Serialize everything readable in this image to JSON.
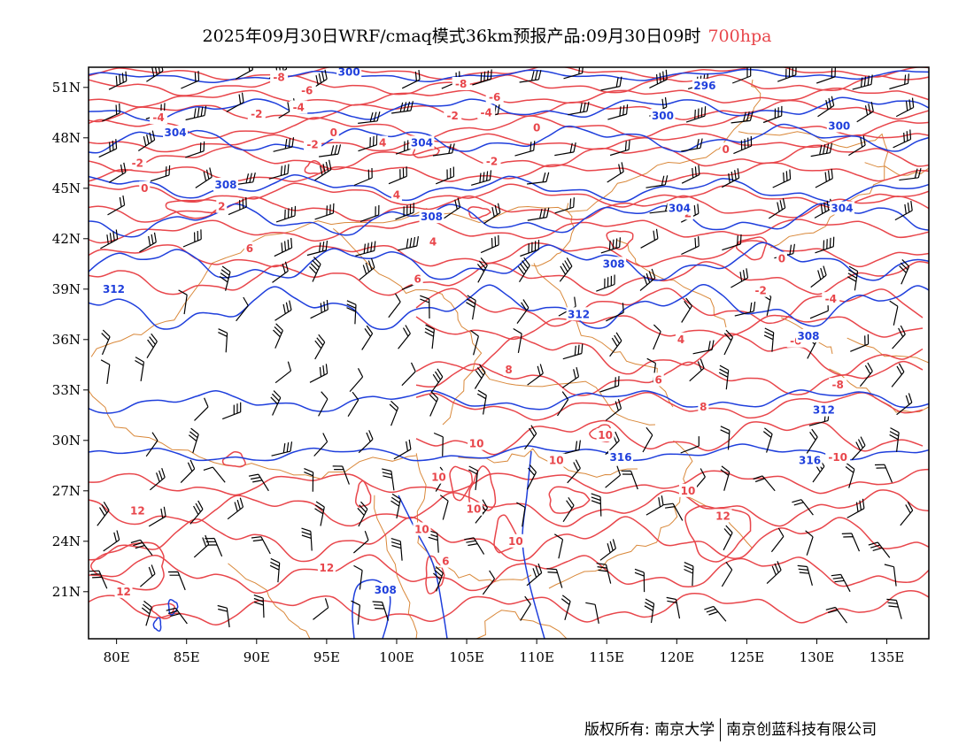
{
  "title": {
    "main": "2025年09月30日WRF/cmaq模式36km预报产品:09月30日09时",
    "level": "700hpa"
  },
  "colors": {
    "temperature": "#e8464b",
    "height": "#1f3fdc",
    "border": "#d9883a",
    "wind": "#000000",
    "level": "#e8464b"
  },
  "axes": {
    "x_labels": [
      "80E",
      "85E",
      "90E",
      "95E",
      "100E",
      "105E",
      "110E",
      "115E",
      "120E",
      "125E",
      "130E",
      "135E"
    ],
    "y_labels": [
      "51N",
      "48N",
      "45N",
      "42N",
      "39N",
      "36N",
      "33N",
      "30N",
      "27N",
      "24N",
      "21N"
    ]
  },
  "chart_data": {
    "type": "contour",
    "level": "700hpa",
    "lon_range": [
      78,
      138
    ],
    "lat_range": [
      18.2,
      52.2
    ],
    "temperature_labels": [
      {
        "text": "-8",
        "lon": 91.6,
        "lat": 51.6
      },
      {
        "text": "-6",
        "lon": 93.6,
        "lat": 50.8
      },
      {
        "text": "-4",
        "lon": 93.0,
        "lat": 49.8
      },
      {
        "text": "-2",
        "lon": 90.0,
        "lat": 49.4
      },
      {
        "text": "0",
        "lon": 95.5,
        "lat": 48.3
      },
      {
        "text": "-2",
        "lon": 94.0,
        "lat": 47.6
      },
      {
        "text": "-4",
        "lon": 83.0,
        "lat": 49.2
      },
      {
        "text": "-2",
        "lon": 81.5,
        "lat": 46.5
      },
      {
        "text": "0",
        "lon": 82.0,
        "lat": 45.0
      },
      {
        "text": "2",
        "lon": 87.5,
        "lat": 43.9
      },
      {
        "text": "4",
        "lon": 99.0,
        "lat": 47.7
      },
      {
        "text": "4",
        "lon": 100.0,
        "lat": 44.6
      },
      {
        "text": "-8",
        "lon": 104.6,
        "lat": 51.2
      },
      {
        "text": "-6",
        "lon": 107.0,
        "lat": 50.4
      },
      {
        "text": "-4",
        "lon": 106.4,
        "lat": 49.5
      },
      {
        "text": "-2",
        "lon": 104.0,
        "lat": 49.3
      },
      {
        "text": "0",
        "lon": 110.0,
        "lat": 48.6
      },
      {
        "text": "-2",
        "lon": 106.8,
        "lat": 46.6
      },
      {
        "text": "0",
        "lon": 123.5,
        "lat": 47.3
      },
      {
        "text": "2",
        "lon": 120.8,
        "lat": 43.5
      },
      {
        "text": "0",
        "lon": 127.5,
        "lat": 40.8
      },
      {
        "text": "-2",
        "lon": 126.0,
        "lat": 38.9
      },
      {
        "text": "-4",
        "lon": 131.0,
        "lat": 38.4
      },
      {
        "text": "-6",
        "lon": 128.5,
        "lat": 35.9
      },
      {
        "text": "-8",
        "lon": 131.5,
        "lat": 33.3
      },
      {
        "text": "-10",
        "lon": 131.5,
        "lat": 29.0
      },
      {
        "text": "4",
        "lon": 102.6,
        "lat": 41.8
      },
      {
        "text": "6",
        "lon": 89.5,
        "lat": 41.4
      },
      {
        "text": "6",
        "lon": 101.5,
        "lat": 39.6
      },
      {
        "text": "4",
        "lon": 120.3,
        "lat": 36.0
      },
      {
        "text": "6",
        "lon": 118.7,
        "lat": 33.6
      },
      {
        "text": "8",
        "lon": 108.0,
        "lat": 34.2
      },
      {
        "text": "8",
        "lon": 121.9,
        "lat": 32.0
      },
      {
        "text": "10",
        "lon": 105.7,
        "lat": 29.8
      },
      {
        "text": "10",
        "lon": 114.9,
        "lat": 30.3
      },
      {
        "text": "10",
        "lon": 111.4,
        "lat": 28.8
      },
      {
        "text": "10",
        "lon": 120.8,
        "lat": 27.0
      },
      {
        "text": "10",
        "lon": 105.5,
        "lat": 25.9
      },
      {
        "text": "10",
        "lon": 101.8,
        "lat": 24.7
      },
      {
        "text": "10",
        "lon": 108.5,
        "lat": 24.0
      },
      {
        "text": "10",
        "lon": 103.0,
        "lat": 27.8
      },
      {
        "text": "12",
        "lon": 123.3,
        "lat": 25.5
      },
      {
        "text": "12",
        "lon": 81.5,
        "lat": 25.8
      },
      {
        "text": "12",
        "lon": 95.0,
        "lat": 22.4
      },
      {
        "text": "12",
        "lon": 80.5,
        "lat": 21.0
      },
      {
        "text": "6",
        "lon": 103.5,
        "lat": 22.8
      }
    ],
    "height_labels": [
      {
        "text": "300",
        "lon": 96.6,
        "lat": 51.9
      },
      {
        "text": "296",
        "lon": 122.0,
        "lat": 51.1
      },
      {
        "text": "300",
        "lon": 119.0,
        "lat": 49.3
      },
      {
        "text": "300",
        "lon": 131.6,
        "lat": 48.7
      },
      {
        "text": "304",
        "lon": 84.2,
        "lat": 48.3
      },
      {
        "text": "304",
        "lon": 101.8,
        "lat": 47.7
      },
      {
        "text": "304",
        "lon": 120.2,
        "lat": 43.8
      },
      {
        "text": "304",
        "lon": 131.8,
        "lat": 43.8
      },
      {
        "text": "308",
        "lon": 87.8,
        "lat": 45.2
      },
      {
        "text": "308",
        "lon": 102.5,
        "lat": 43.3
      },
      {
        "text": "308",
        "lon": 115.5,
        "lat": 40.5
      },
      {
        "text": "312",
        "lon": 79.8,
        "lat": 39.0
      },
      {
        "text": "312",
        "lon": 113.0,
        "lat": 37.5
      },
      {
        "text": "308",
        "lon": 129.4,
        "lat": 36.2
      },
      {
        "text": "312",
        "lon": 130.5,
        "lat": 31.8
      },
      {
        "text": "316",
        "lon": 116.0,
        "lat": 29.0
      },
      {
        "text": "316",
        "lon": 129.5,
        "lat": 28.8
      },
      {
        "text": "308",
        "lon": 99.2,
        "lat": 21.1
      }
    ]
  },
  "footer": {
    "copyright": "版权所有: 南京大学",
    "company": "南京创蓝科技有限公司"
  }
}
